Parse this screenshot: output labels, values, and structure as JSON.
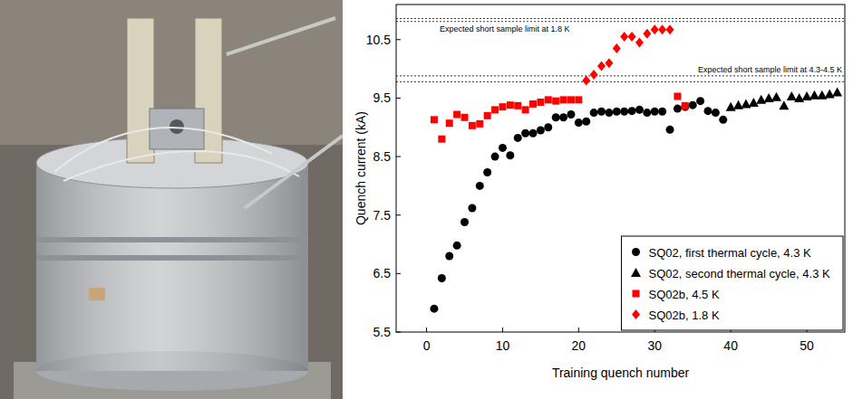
{
  "chart_data": {
    "type": "scatter",
    "x_label": "Training quench number",
    "y_label": "Quench current (kA)",
    "xlim": [
      -4,
      55
    ],
    "xticks": [
      0,
      10,
      20,
      30,
      40,
      50
    ],
    "ylim": [
      5.5,
      11.1
    ],
    "yticks": [
      5.5,
      6.5,
      7.5,
      8.5,
      9.5,
      10.5
    ],
    "grid": false,
    "legend": "lower right",
    "annotations": [
      {
        "text": "Expected short sample limit at 1.8 K",
        "y": [
          10.86,
          10.81
        ]
      },
      {
        "text": "Expected short sample limit at 4.3-4.5 K",
        "y": [
          9.88,
          9.78
        ]
      }
    ],
    "series": [
      {
        "name": "SQ02, first thermal cycle, 4.3 K",
        "color": "#000000",
        "marker": "circle",
        "x": [
          1,
          2,
          3,
          4,
          5,
          6,
          7,
          8,
          9,
          10,
          11,
          12,
          13,
          14,
          15,
          16,
          17,
          18,
          19,
          20,
          21,
          22,
          23,
          24,
          25,
          26,
          27,
          28,
          29,
          30,
          31,
          32,
          33,
          34,
          35,
          36,
          37,
          38,
          39
        ],
        "values": [
          5.9,
          6.42,
          6.8,
          6.98,
          7.38,
          7.62,
          8.0,
          8.23,
          8.5,
          8.65,
          8.52,
          8.82,
          8.9,
          8.9,
          8.95,
          9.0,
          9.17,
          9.17,
          9.22,
          9.08,
          9.1,
          9.25,
          9.27,
          9.25,
          9.27,
          9.27,
          9.28,
          9.3,
          9.25,
          9.27,
          9.27,
          8.96,
          9.32,
          9.35,
          9.38,
          9.45,
          9.28,
          9.25,
          9.13
        ]
      },
      {
        "name": "SQ02, second thermal cycle, 4.3 K",
        "color": "#000000",
        "marker": "triangle",
        "x": [
          40,
          41,
          42,
          43,
          44,
          45,
          46,
          47,
          48,
          49,
          50,
          51,
          52,
          53,
          54
        ],
        "values": [
          9.35,
          9.38,
          9.4,
          9.42,
          9.47,
          9.5,
          9.52,
          9.37,
          9.53,
          9.5,
          9.53,
          9.55,
          9.55,
          9.57,
          9.6
        ]
      },
      {
        "name": "SQ02b, 4.5 K",
        "color": "#ff0000",
        "marker": "square",
        "x": [
          1,
          2,
          3,
          4,
          5,
          6,
          7,
          8,
          9,
          10,
          11,
          12,
          13,
          14,
          15,
          16,
          17,
          18,
          19,
          20,
          33,
          34
        ],
        "values": [
          9.13,
          8.8,
          9.07,
          9.22,
          9.17,
          9.03,
          9.06,
          9.2,
          9.3,
          9.35,
          9.38,
          9.37,
          9.3,
          9.4,
          9.43,
          9.47,
          9.45,
          9.47,
          9.47,
          9.47,
          9.53,
          9.37
        ]
      },
      {
        "name": "SQ02b, 1.8 K",
        "color": "#ff0000",
        "marker": "diamond",
        "x": [
          21,
          22,
          23,
          24,
          25,
          26,
          27,
          28,
          29,
          30,
          31,
          32
        ],
        "values": [
          9.8,
          9.9,
          10.05,
          10.1,
          10.35,
          10.55,
          10.55,
          10.45,
          10.6,
          10.67,
          10.67,
          10.67
        ]
      }
    ]
  }
}
